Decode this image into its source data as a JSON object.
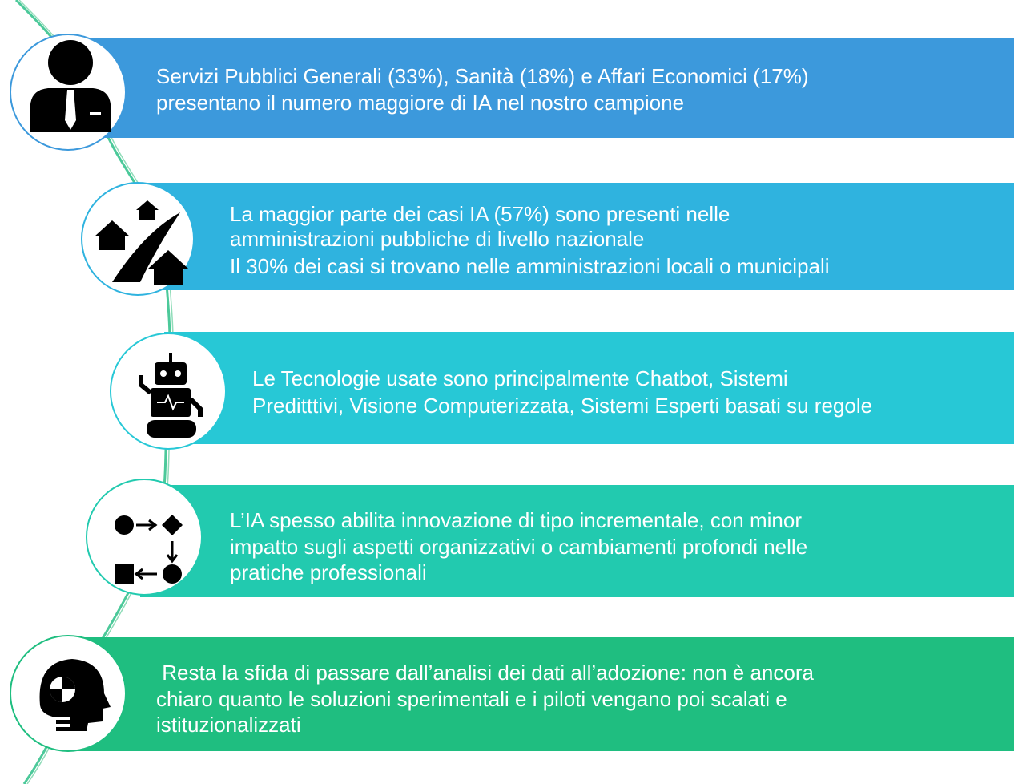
{
  "items": [
    {
      "lines": [
        "Servizi Pubblici Generali (33%), Sanità (18%) e Affari Economici (17%)",
        "presentano il numero maggiore di IA nel nostro campione"
      ]
    },
    {
      "lines": [
        "La maggior parte dei casi IA (57%) sono presenti nelle",
        "amministrazioni pubbliche di livello nazionale",
        "Il 30% dei casi si trovano nelle amministrazioni locali o municipali"
      ]
    },
    {
      "lines": [
        "Le Tecnologie usate sono principalmente Chatbot, Sistemi",
        "Preditttivi, Visione Computerizzata, Sistemi Esperti basati su regole"
      ]
    },
    {
      "lines": [
        "L’IA spesso abilita innovazione di tipo incrementale, con minor",
        "impatto sugli aspetti organizzativi o cambiamenti profondi nelle",
        "pratiche professionali"
      ]
    },
    {
      "lines": [
        " Resta la sfida di passare dall’analisi dei dati all’adozione: non è ancora",
        "chiaro quanto le soluzioni sperimentali e i piloti vengano poi scalati e",
        "istituzionalizzati"
      ]
    }
  ]
}
